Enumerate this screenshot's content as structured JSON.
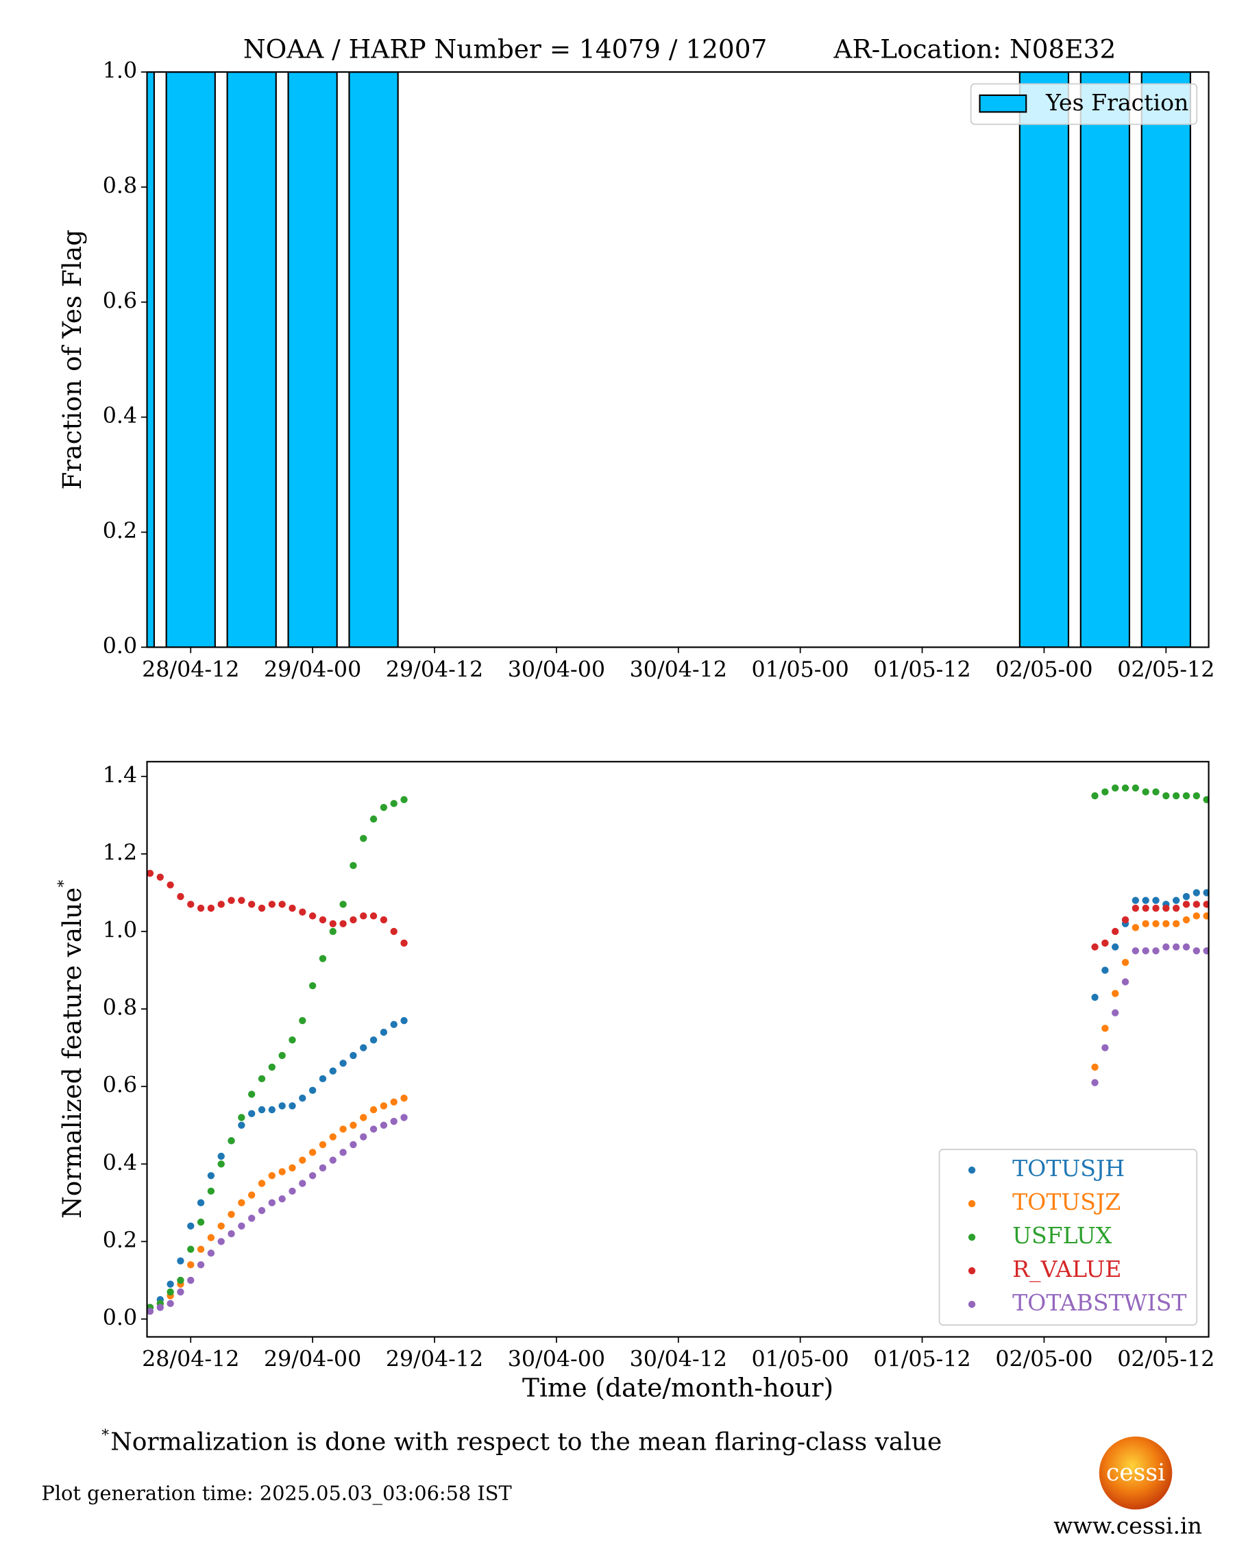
{
  "title": "NOAA / HARP Number = 14079 / 12007",
  "location": "AR-Location: N08E32",
  "footnote_mark": "*",
  "footnote": "Normalization is done with respect to the mean flaring-class value",
  "generation_time": "Plot generation time: 2025.05.03_03:06:58 IST",
  "logo_text": "cessi",
  "website": "www.cessi.in",
  "chart_data": [
    {
      "type": "bar",
      "ylabel": "Fraction of Yes Flag",
      "legend": "upper right",
      "bar_width": 4.8,
      "x": [
        6,
        12,
        18,
        24,
        30,
        96,
        102,
        108
      ],
      "series": [
        {
          "name": "Yes Fraction",
          "color": "#00bfff",
          "values": [
            1,
            1,
            1,
            1,
            1,
            1,
            1,
            1
          ]
        }
      ],
      "xlim": [
        7.7,
        112.2
      ],
      "ylim": [
        0,
        1
      ],
      "xticks": [
        {
          "value": 12,
          "label": "28/04-12"
        },
        {
          "value": 24,
          "label": "29/04-00"
        },
        {
          "value": 36,
          "label": "29/04-12"
        },
        {
          "value": 48,
          "label": "30/04-00"
        },
        {
          "value": 60,
          "label": "30/04-12"
        },
        {
          "value": 72,
          "label": "01/05-00"
        },
        {
          "value": 84,
          "label": "01/05-12"
        },
        {
          "value": 96,
          "label": "02/05-00"
        },
        {
          "value": 108,
          "label": "02/05-12"
        }
      ],
      "yticks": [
        {
          "value": 0,
          "label": "0.0"
        },
        {
          "value": 0.2,
          "label": "0.2"
        },
        {
          "value": 0.4,
          "label": "0.4"
        },
        {
          "value": 0.6,
          "label": "0.6"
        },
        {
          "value": 0.8,
          "label": "0.8"
        },
        {
          "value": 1,
          "label": "1.0"
        }
      ]
    },
    {
      "type": "scatter",
      "xlabel": "Time (date/month-hour)",
      "ylabel": "Normalized feature value",
      "ylabel_mark": "*",
      "legend": "lower right",
      "x": [
        8,
        9,
        10,
        11,
        12,
        13,
        14,
        15,
        16,
        17,
        18,
        19,
        20,
        21,
        22,
        23,
        24,
        25,
        26,
        27,
        28,
        29,
        30,
        31,
        32,
        33,
        101,
        102,
        103,
        104,
        105,
        106,
        107,
        108,
        109,
        110,
        111,
        112
      ],
      "series": [
        {
          "name": "TOTUSJH",
          "color": "#1f77b4",
          "values": [
            0.03,
            0.05,
            0.09,
            0.15,
            0.24,
            0.3,
            0.37,
            0.42,
            0.46,
            0.5,
            0.53,
            0.54,
            0.54,
            0.55,
            0.55,
            0.57,
            0.59,
            0.62,
            0.64,
            0.66,
            0.68,
            0.7,
            0.72,
            0.74,
            0.76,
            0.77,
            0.83,
            0.9,
            0.96,
            1.02,
            1.08,
            1.08,
            1.08,
            1.07,
            1.08,
            1.09,
            1.1,
            1.1
          ]
        },
        {
          "name": "TOTUSJZ",
          "color": "#ff7f0e",
          "values": [
            0.03,
            0.04,
            0.06,
            0.09,
            0.14,
            0.18,
            0.21,
            0.24,
            0.27,
            0.3,
            0.32,
            0.35,
            0.37,
            0.38,
            0.39,
            0.41,
            0.43,
            0.45,
            0.47,
            0.49,
            0.5,
            0.52,
            0.54,
            0.55,
            0.56,
            0.57,
            0.65,
            0.75,
            0.84,
            0.92,
            1.01,
            1.02,
            1.02,
            1.02,
            1.02,
            1.03,
            1.04,
            1.04
          ]
        },
        {
          "name": "USFLUX",
          "color": "#2ca02c",
          "values": [
            0.03,
            0.04,
            0.07,
            0.1,
            0.18,
            0.25,
            0.33,
            0.4,
            0.46,
            0.52,
            0.58,
            0.62,
            0.65,
            0.68,
            0.72,
            0.77,
            0.86,
            0.93,
            1.0,
            1.07,
            1.17,
            1.24,
            1.29,
            1.32,
            1.33,
            1.34,
            1.35,
            1.36,
            1.37,
            1.37,
            1.37,
            1.36,
            1.36,
            1.35,
            1.35,
            1.35,
            1.35,
            1.34
          ]
        },
        {
          "name": "R_VALUE",
          "color": "#d62728",
          "values": [
            1.15,
            1.14,
            1.12,
            1.09,
            1.07,
            1.06,
            1.06,
            1.07,
            1.08,
            1.08,
            1.07,
            1.06,
            1.07,
            1.07,
            1.06,
            1.05,
            1.04,
            1.03,
            1.02,
            1.02,
            1.03,
            1.04,
            1.04,
            1.03,
            1.0,
            0.97,
            0.96,
            0.97,
            1.0,
            1.03,
            1.06,
            1.06,
            1.06,
            1.06,
            1.06,
            1.07,
            1.07,
            1.07
          ]
        },
        {
          "name": "TOTABSTWIST",
          "color": "#9467bd",
          "values": [
            0.02,
            0.03,
            0.04,
            0.07,
            0.1,
            0.14,
            0.17,
            0.2,
            0.22,
            0.24,
            0.26,
            0.28,
            0.3,
            0.31,
            0.33,
            0.35,
            0.37,
            0.39,
            0.41,
            0.43,
            0.45,
            0.47,
            0.49,
            0.5,
            0.51,
            0.52,
            0.61,
            0.7,
            0.79,
            0.87,
            0.95,
            0.95,
            0.95,
            0.96,
            0.96,
            0.96,
            0.95,
            0.95
          ]
        }
      ],
      "xlim": [
        7.7,
        112.2
      ],
      "ylim": [
        -0.046,
        1.438
      ],
      "xticks": [
        {
          "value": 12,
          "label": "28/04-12"
        },
        {
          "value": 24,
          "label": "29/04-00"
        },
        {
          "value": 36,
          "label": "29/04-12"
        },
        {
          "value": 48,
          "label": "30/04-00"
        },
        {
          "value": 60,
          "label": "30/04-12"
        },
        {
          "value": 72,
          "label": "01/05-00"
        },
        {
          "value": 84,
          "label": "01/05-12"
        },
        {
          "value": 96,
          "label": "02/05-00"
        },
        {
          "value": 108,
          "label": "02/05-12"
        }
      ],
      "yticks": [
        {
          "value": 0,
          "label": "0.0"
        },
        {
          "value": 0.2,
          "label": "0.2"
        },
        {
          "value": 0.4,
          "label": "0.4"
        },
        {
          "value": 0.6,
          "label": "0.6"
        },
        {
          "value": 0.8,
          "label": "0.8"
        },
        {
          "value": 1,
          "label": "1.0"
        },
        {
          "value": 1.2,
          "label": "1.2"
        },
        {
          "value": 1.4,
          "label": "1.4"
        }
      ]
    }
  ]
}
